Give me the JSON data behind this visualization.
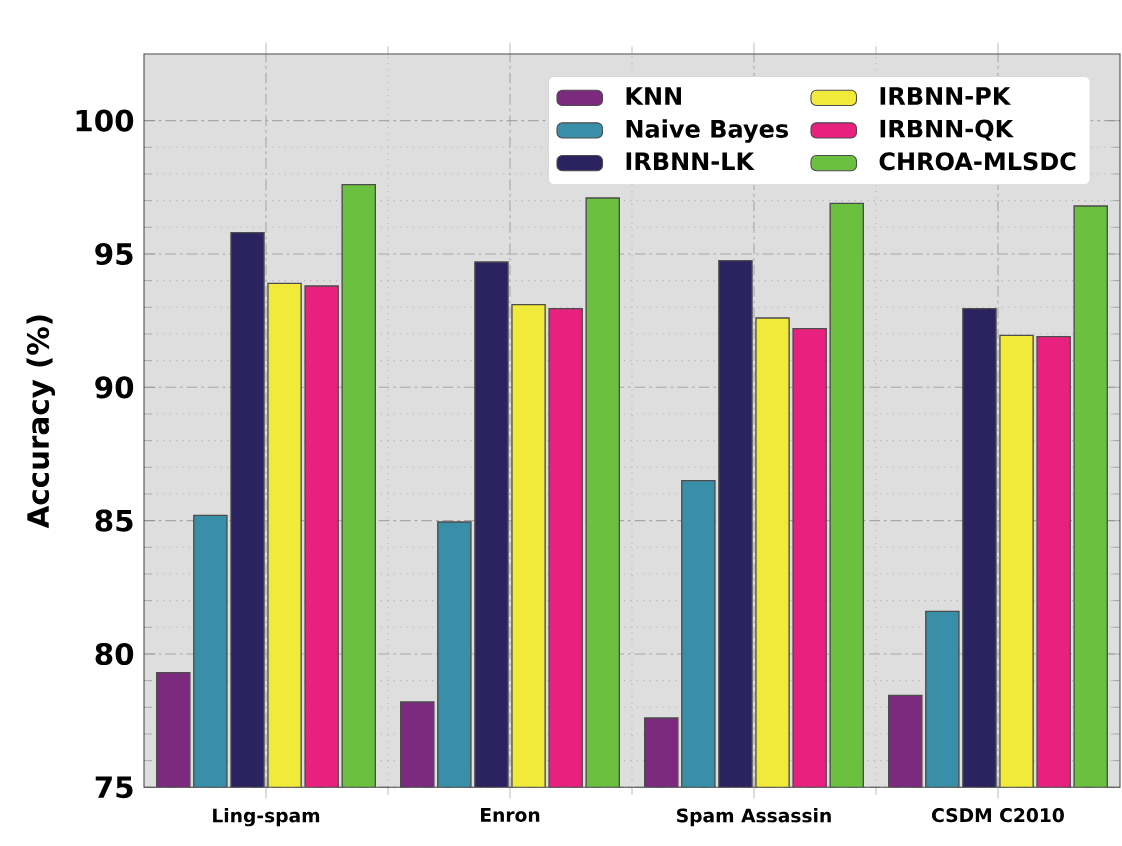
{
  "chart_data": {
    "type": "bar",
    "ylabel": "Accuracy (%)",
    "categories": [
      "Ling-spam",
      "Enron",
      "Spam Assassin",
      "CSDM C2010"
    ],
    "series": [
      {
        "name": "KNN",
        "color": "#7b2a7e",
        "values": [
          79.3,
          78.2,
          77.6,
          78.45
        ]
      },
      {
        "name": "Naive Bayes",
        "color": "#3a8fa8",
        "values": [
          85.2,
          84.95,
          86.5,
          81.6
        ]
      },
      {
        "name": "IRBNN-LK",
        "color": "#2a2360",
        "values": [
          95.8,
          94.7,
          94.75,
          92.95
        ]
      },
      {
        "name": "IRBNN-PK",
        "color": "#f2ea3a",
        "values": [
          93.9,
          93.1,
          92.6,
          91.95
        ]
      },
      {
        "name": "IRBNN-QK",
        "color": "#e8207e",
        "values": [
          93.8,
          92.95,
          92.2,
          91.9
        ]
      },
      {
        "name": "CHROA-MLSDC",
        "color": "#6cc040",
        "values": [
          97.6,
          97.1,
          96.9,
          96.8
        ]
      }
    ],
    "ylim": [
      75,
      102.5
    ],
    "yticks": [
      75,
      80,
      85,
      90,
      95,
      100
    ],
    "grid": true,
    "legend": "top right"
  }
}
